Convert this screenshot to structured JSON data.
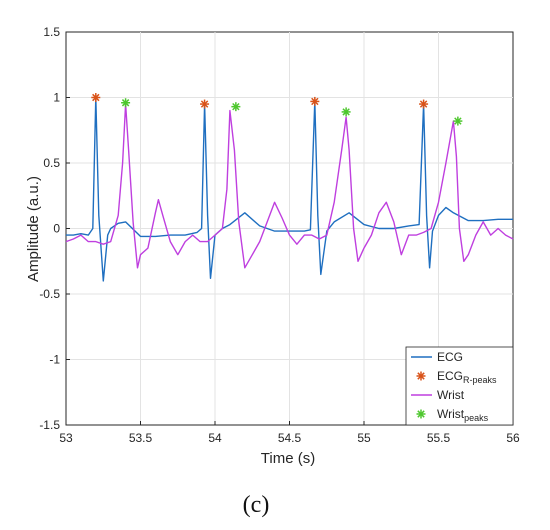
{
  "figure": {
    "panel_label": "(c)"
  },
  "chart_data": {
    "type": "line",
    "xlabel": "Time (s)",
    "ylabel": "Amplitude (a.u.)",
    "xlim": [
      53,
      56
    ],
    "ylim": [
      -1.5,
      1.5
    ],
    "x_ticks": [
      53,
      53.5,
      54,
      54.5,
      55,
      55.5,
      56
    ],
    "x_tick_labels": [
      "53",
      "53.5",
      "54",
      "54.5",
      "55",
      "55.5",
      "56"
    ],
    "y_ticks": [
      -1.5,
      -1,
      -0.5,
      0,
      0.5,
      1,
      1.5
    ],
    "y_tick_labels": [
      "-1.5",
      "-1",
      "-0.5",
      "0",
      "0.5",
      "1",
      "1.5"
    ],
    "grid": true,
    "legend_position": "bottom-right",
    "legend": [
      {
        "label": "ECG",
        "sub": "",
        "kind": "line",
        "color": "#1f6fc0"
      },
      {
        "label": "ECG",
        "sub": "R-peaks",
        "kind": "marker",
        "color": "#d95319"
      },
      {
        "label": "Wrist",
        "sub": "",
        "kind": "line",
        "color": "#bf3fdf"
      },
      {
        "label": "Wrist",
        "sub": "peaks",
        "kind": "marker",
        "color": "#4ec72e"
      }
    ],
    "series": [
      {
        "name": "ECG",
        "color": "#1f6fc0",
        "x": [
          53.0,
          53.05,
          53.1,
          53.15,
          53.18,
          53.2,
          53.22,
          53.25,
          53.28,
          53.3,
          53.35,
          53.4,
          53.5,
          53.6,
          53.7,
          53.8,
          53.88,
          53.91,
          53.93,
          53.95,
          53.97,
          54.0,
          54.05,
          54.1,
          54.2,
          54.3,
          54.4,
          54.5,
          54.6,
          54.64,
          54.67,
          54.69,
          54.71,
          54.75,
          54.8,
          54.9,
          55.0,
          55.1,
          55.2,
          55.3,
          55.37,
          55.4,
          55.42,
          55.44,
          55.46,
          55.5,
          55.55,
          55.6,
          55.7,
          55.8,
          55.9,
          56.0
        ],
        "y": [
          -0.05,
          -0.05,
          -0.04,
          -0.05,
          0.0,
          1.0,
          0.1,
          -0.4,
          -0.05,
          0.0,
          0.04,
          0.05,
          -0.06,
          -0.06,
          -0.05,
          -0.05,
          -0.03,
          0.0,
          0.95,
          0.1,
          -0.38,
          -0.05,
          0.0,
          0.03,
          0.12,
          0.02,
          -0.02,
          -0.02,
          -0.02,
          -0.01,
          0.97,
          0.1,
          -0.35,
          -0.02,
          0.05,
          0.12,
          0.03,
          0.0,
          0.0,
          0.02,
          0.03,
          0.95,
          0.1,
          -0.3,
          -0.02,
          0.1,
          0.16,
          0.12,
          0.06,
          0.06,
          0.07,
          0.07
        ]
      },
      {
        "name": "Wrist",
        "color": "#bf3fdf",
        "x": [
          53.0,
          53.05,
          53.1,
          53.15,
          53.2,
          53.25,
          53.3,
          53.35,
          53.38,
          53.4,
          53.42,
          53.45,
          53.48,
          53.5,
          53.55,
          53.6,
          53.62,
          53.65,
          53.7,
          53.75,
          53.8,
          53.85,
          53.9,
          53.95,
          54.0,
          54.05,
          54.08,
          54.1,
          54.13,
          54.16,
          54.2,
          54.25,
          54.3,
          54.35,
          54.4,
          54.45,
          54.5,
          54.55,
          54.6,
          54.65,
          54.7,
          54.75,
          54.8,
          54.85,
          54.88,
          54.9,
          54.93,
          54.96,
          55.0,
          55.05,
          55.1,
          55.15,
          55.2,
          55.25,
          55.3,
          55.35,
          55.4,
          55.45,
          55.5,
          55.55,
          55.6,
          55.62,
          55.64,
          55.67,
          55.7,
          55.75,
          55.8,
          55.85,
          55.9,
          55.95,
          56.0
        ],
        "y": [
          -0.1,
          -0.08,
          -0.05,
          -0.1,
          -0.1,
          -0.12,
          -0.1,
          0.1,
          0.5,
          0.95,
          0.6,
          0.05,
          -0.3,
          -0.2,
          -0.15,
          0.12,
          0.22,
          0.1,
          -0.1,
          -0.2,
          -0.1,
          -0.05,
          -0.1,
          -0.1,
          -0.05,
          0.0,
          0.3,
          0.9,
          0.6,
          0.05,
          -0.3,
          -0.2,
          -0.1,
          0.05,
          0.2,
          0.08,
          -0.05,
          -0.12,
          -0.05,
          -0.05,
          -0.08,
          -0.05,
          0.2,
          0.6,
          0.85,
          0.6,
          0.0,
          -0.25,
          -0.15,
          -0.05,
          0.12,
          0.2,
          0.05,
          -0.2,
          -0.05,
          -0.05,
          -0.03,
          0.0,
          0.2,
          0.5,
          0.82,
          0.55,
          0.0,
          -0.25,
          -0.2,
          -0.05,
          0.05,
          -0.05,
          0.0,
          -0.05,
          -0.08
        ]
      }
    ],
    "markers": [
      {
        "name": "ECG_R-peaks",
        "color": "#d95319",
        "x": [
          53.2,
          53.93,
          54.67,
          55.4
        ],
        "y": [
          1.0,
          0.95,
          0.97,
          0.95
        ]
      },
      {
        "name": "Wrist_peaks",
        "color": "#4ec72e",
        "x": [
          53.4,
          54.14,
          54.88,
          55.63
        ],
        "y": [
          0.96,
          0.93,
          0.89,
          0.82
        ]
      }
    ]
  }
}
